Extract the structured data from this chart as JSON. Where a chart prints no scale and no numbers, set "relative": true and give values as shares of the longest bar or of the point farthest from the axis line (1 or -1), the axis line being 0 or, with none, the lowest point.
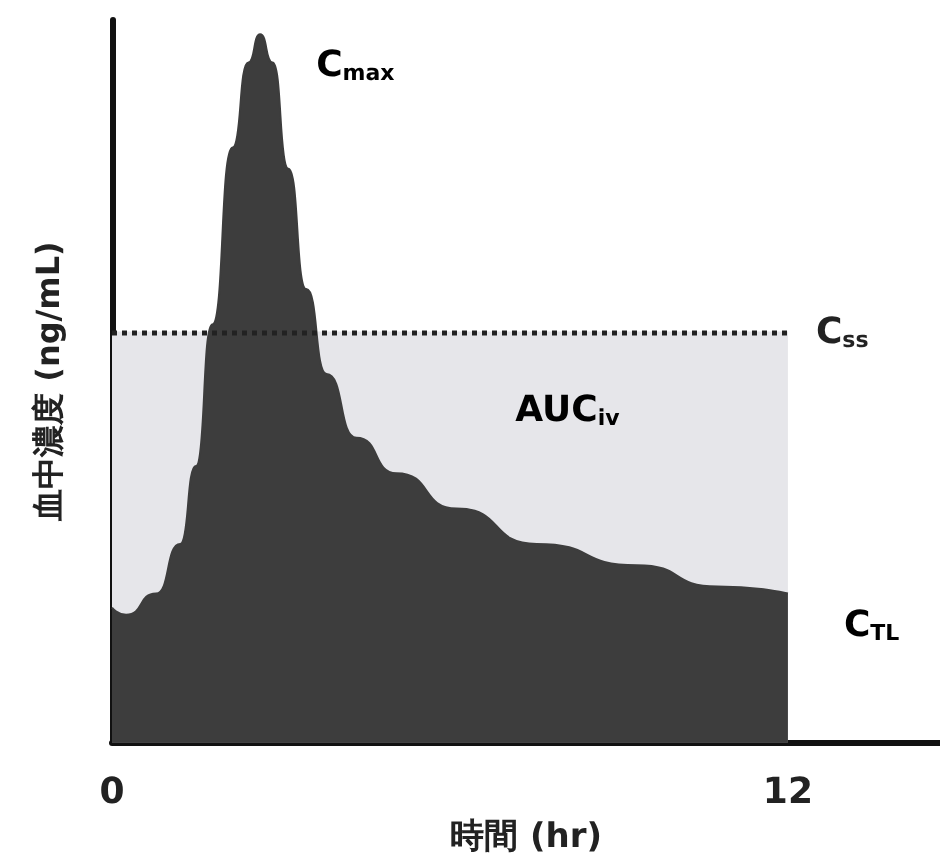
{
  "chart_data": {
    "type": "area",
    "relative": true,
    "xlabel": "時間 (hr)",
    "ylabel": "血中濃度 (ng/mL)",
    "x": [
      0,
      0.25,
      0.78,
      1.21,
      1.49,
      1.78,
      2.14,
      2.42,
      2.63,
      2.85,
      3.13,
      3.45,
      3.81,
      4.34,
      5.05,
      6.12,
      7.54,
      9.32,
      10.75,
      12
    ],
    "xlim": [
      0,
      14.7
    ],
    "xticks": [
      0,
      12
    ],
    "series": [
      {
        "color": "#3d3d3d",
        "values": [
          0.19,
          0.18,
          0.21,
          0.28,
          0.39,
          0.59,
          0.84,
          0.96,
          1.0,
          0.96,
          0.81,
          0.64,
          0.52,
          0.43,
          0.38,
          0.33,
          0.28,
          0.25,
          0.22,
          0.21
        ]
      }
    ],
    "ref_lines": [
      {
        "axis": "y",
        "value": 0.58,
        "label": "C$_{ss}$",
        "line_style": "dotted",
        "color": "#222222"
      }
    ],
    "bands": [
      {
        "axis": "y",
        "from": 0,
        "to": 0.58,
        "color": "#e6e6ea"
      }
    ],
    "annotations": [
      {
        "text": "C$_{max}$",
        "x": 2.63,
        "y": 1.0
      },
      "AUC$_{iv}$",
      {
        "text": "C$_{TL}$",
        "x": 12,
        "y": 0.21
      }
    ],
    "grid": false,
    "marker": "none",
    "line_style": "solid"
  }
}
